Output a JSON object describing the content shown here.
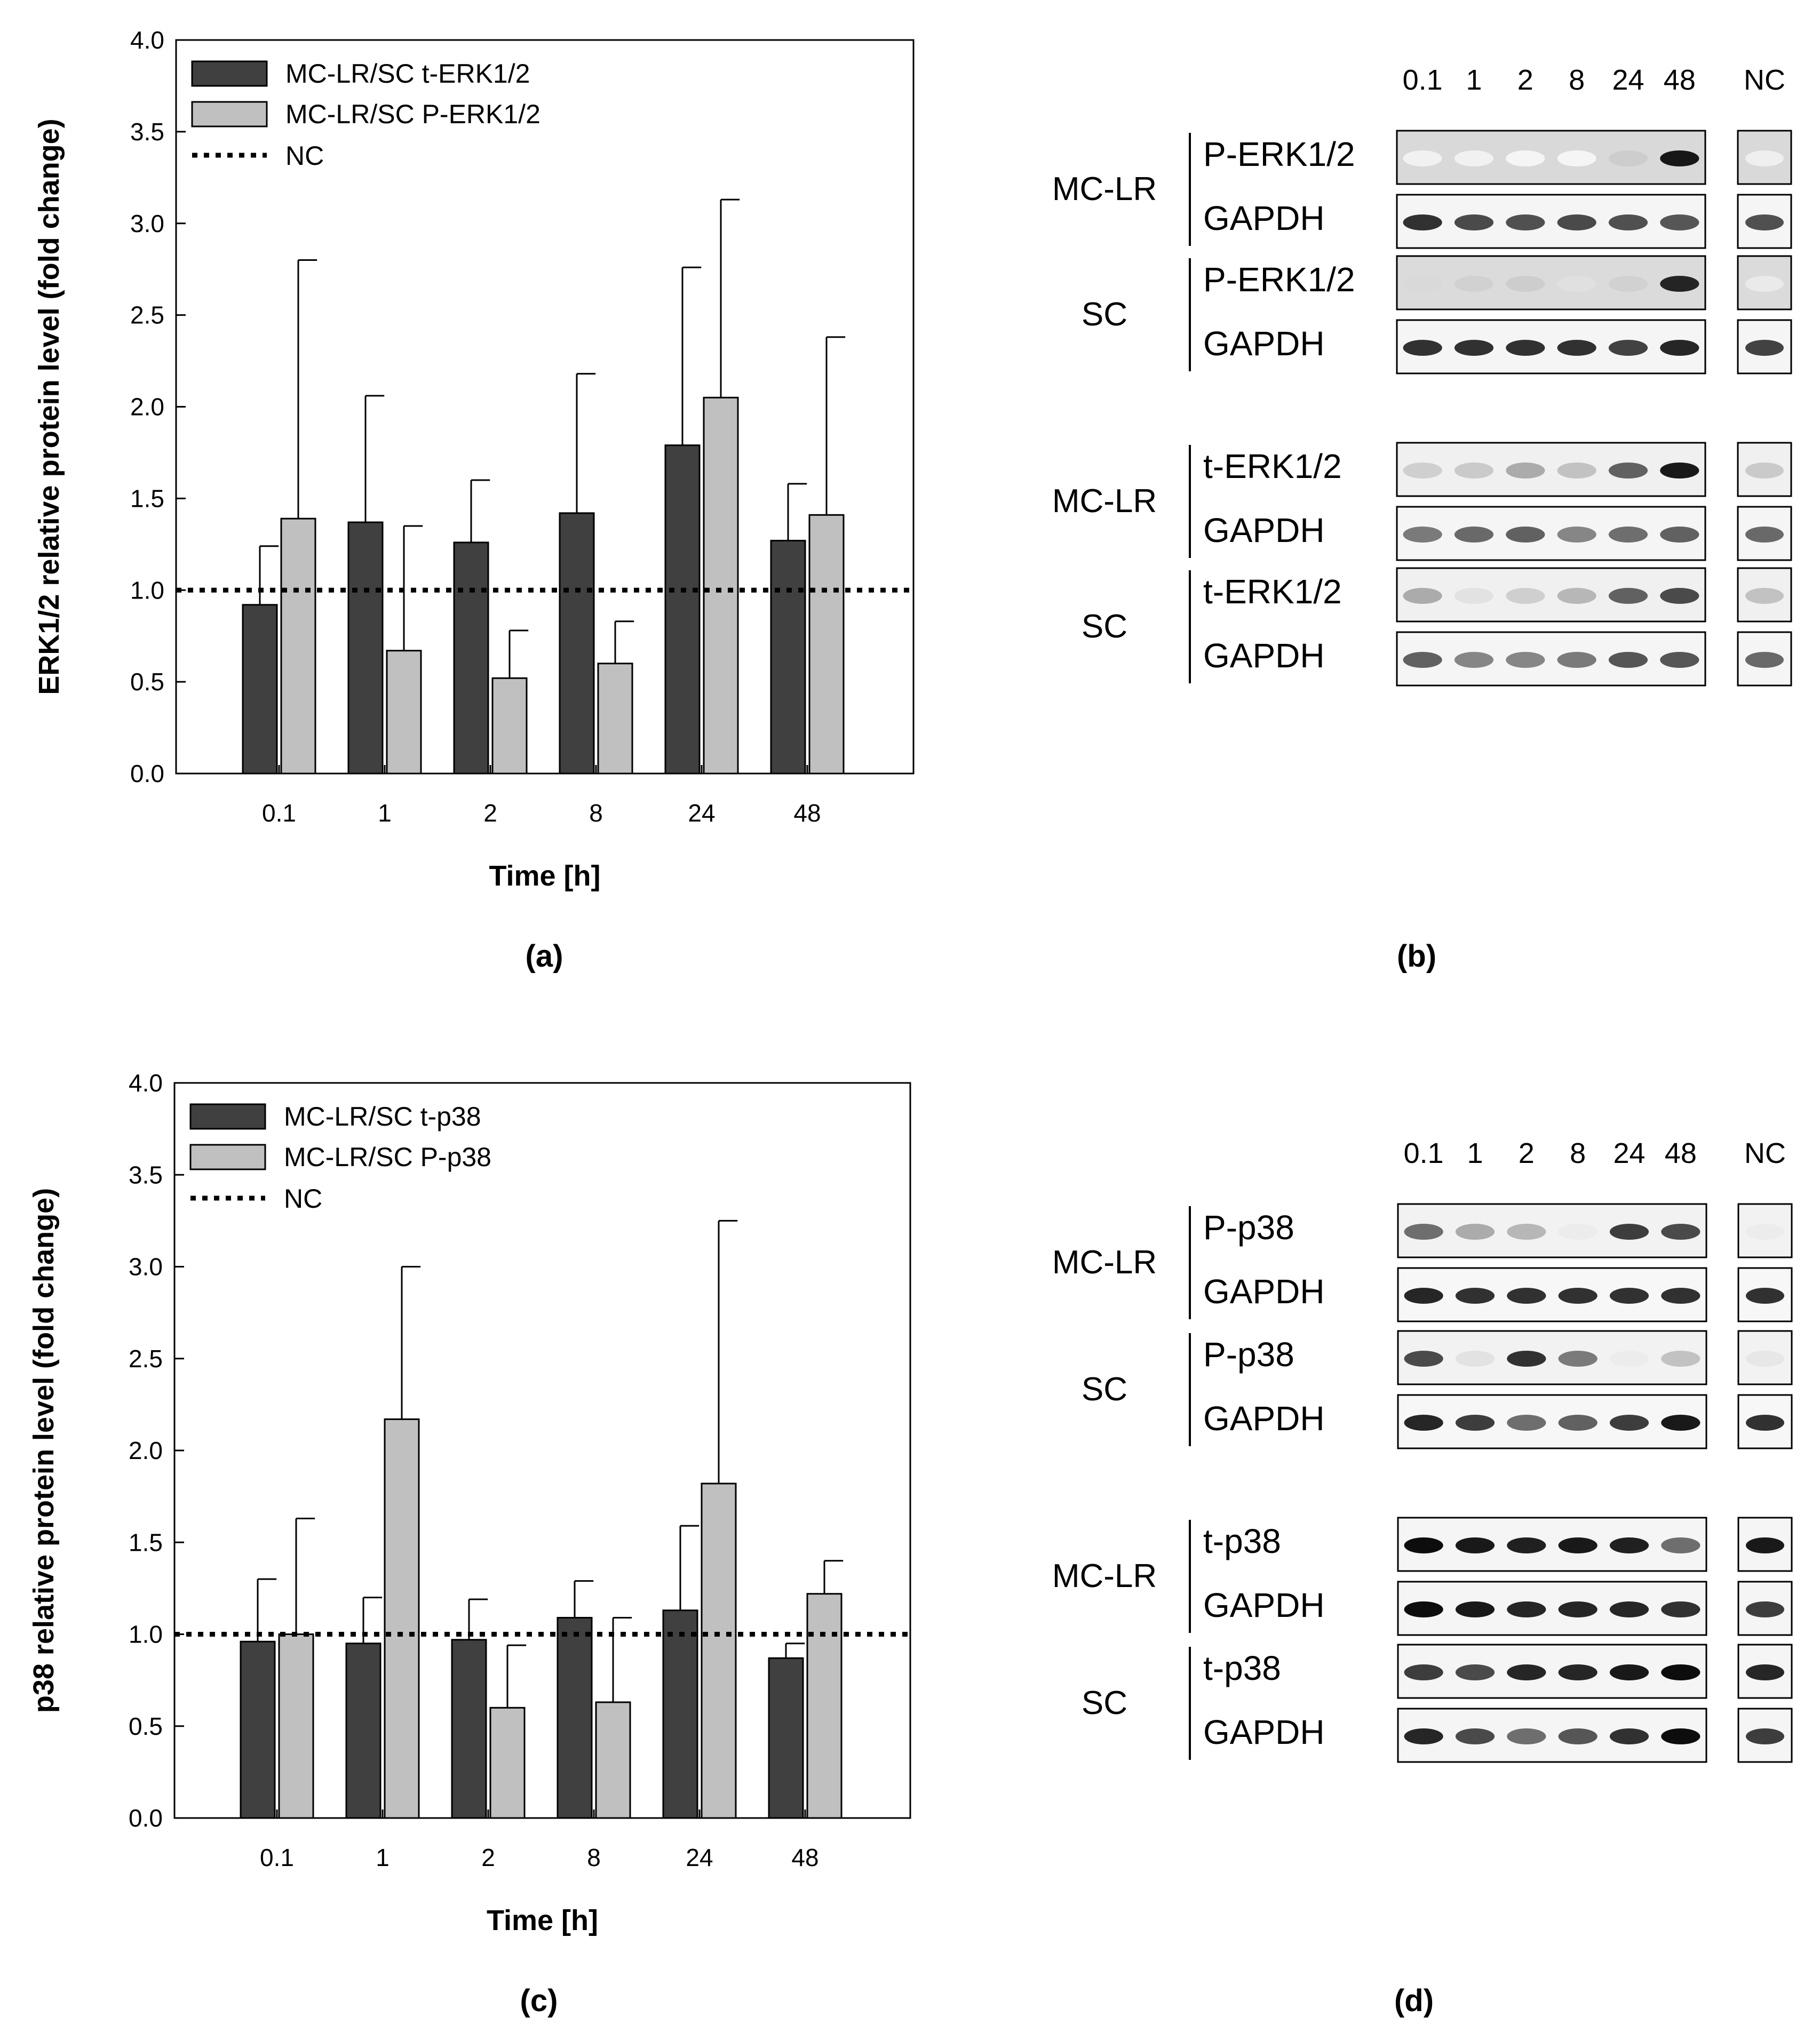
{
  "panel_labels": {
    "a": "(a)",
    "b": "(b)",
    "c": "(c)",
    "d": "(d)"
  },
  "chart_data": [
    {
      "type": "bar",
      "panel": "(a)",
      "xlabel": "Time [h]",
      "ylabel": "ERK1/2 relative protein level (fold change)",
      "ylim": [
        0,
        4.0
      ],
      "yticks": [
        "0.0",
        "0.5",
        "1.0",
        "1.5",
        "2.0",
        "2.5",
        "3.0",
        "3.5",
        "4.0"
      ],
      "categories": [
        "0.1",
        "1",
        "2",
        "8",
        "24",
        "48"
      ],
      "series": [
        {
          "name": "MC-LR/SC t-ERK1/2",
          "color": "#404040",
          "values": [
            0.92,
            1.37,
            1.26,
            1.42,
            1.79,
            1.27
          ],
          "errors": [
            0.32,
            0.69,
            0.34,
            0.76,
            0.97,
            0.31
          ]
        },
        {
          "name": "MC-LR/SC P-ERK1/2",
          "color": "#c0c0c0",
          "values": [
            1.39,
            0.67,
            0.52,
            0.6,
            2.05,
            1.41
          ],
          "errors": [
            1.41,
            0.68,
            0.26,
            0.23,
            1.08,
            0.97
          ]
        }
      ],
      "reference_line": {
        "name": "NC",
        "value": 1.0
      }
    },
    {
      "type": "bar",
      "panel": "(c)",
      "xlabel": "Time [h]",
      "ylabel": "p38 relative protein level (fold change)",
      "ylim": [
        0,
        4.0
      ],
      "yticks": [
        "0.0",
        "0.5",
        "1.0",
        "1.5",
        "2.0",
        "2.5",
        "3.0",
        "3.5",
        "4.0"
      ],
      "categories": [
        "0.1",
        "1",
        "2",
        "8",
        "24",
        "48"
      ],
      "series": [
        {
          "name": "MC-LR/SC t-p38",
          "color": "#404040",
          "values": [
            0.96,
            0.95,
            0.97,
            1.09,
            1.13,
            0.87
          ],
          "errors": [
            0.34,
            0.25,
            0.22,
            0.2,
            0.46,
            0.08
          ]
        },
        {
          "name": "MC-LR/SC P-p38",
          "color": "#c0c0c0",
          "values": [
            1.0,
            2.17,
            0.6,
            0.63,
            1.82,
            1.22
          ],
          "errors": [
            0.63,
            0.83,
            0.34,
            0.46,
            1.43,
            0.18
          ]
        }
      ],
      "reference_line": {
        "name": "NC",
        "value": 1.0
      }
    }
  ],
  "blots": [
    {
      "panel": "(b)",
      "lane_labels": [
        "0.1",
        "1",
        "2",
        "8",
        "24",
        "48"
      ],
      "nc_label": "NC",
      "groups": [
        {
          "sample": "MC-LR",
          "rows": [
            {
              "label": "P-ERK1/2",
              "intensity": [
                0.05,
                0.05,
                0.03,
                0.03,
                0.2,
                0.95
              ],
              "nc": 0.06,
              "bg": 0.15
            },
            {
              "label": "GAPDH",
              "intensity": [
                0.85,
                0.75,
                0.72,
                0.75,
                0.72,
                0.7
              ],
              "nc": 0.72,
              "bg": 0.04
            }
          ]
        },
        {
          "sample": "SC",
          "rows": [
            {
              "label": "P-ERK1/2",
              "intensity": [
                0.15,
                0.18,
                0.2,
                0.12,
                0.18,
                0.9
              ],
              "nc": 0.08,
              "bg": 0.14
            },
            {
              "label": "GAPDH",
              "intensity": [
                0.85,
                0.85,
                0.85,
                0.85,
                0.78,
                0.9
              ],
              "nc": 0.78,
              "bg": 0.04
            }
          ]
        },
        {
          "sample": "MC-LR",
          "rows": [
            {
              "label": "t-ERK1/2",
              "intensity": [
                0.2,
                0.22,
                0.35,
                0.25,
                0.65,
                0.95
              ],
              "nc": 0.22,
              "bg": 0.06
            },
            {
              "label": "GAPDH",
              "intensity": [
                0.55,
                0.62,
                0.65,
                0.5,
                0.6,
                0.65
              ],
              "nc": 0.62,
              "bg": 0.04
            }
          ]
        },
        {
          "sample": "SC",
          "rows": [
            {
              "label": "t-ERK1/2",
              "intensity": [
                0.35,
                0.12,
                0.2,
                0.3,
                0.65,
                0.75
              ],
              "nc": 0.25,
              "bg": 0.06
            },
            {
              "label": "GAPDH",
              "intensity": [
                0.65,
                0.5,
                0.5,
                0.55,
                0.7,
                0.7
              ],
              "nc": 0.62,
              "bg": 0.04
            }
          ]
        }
      ]
    },
    {
      "panel": "(d)",
      "lane_labels": [
        "0.1",
        "1",
        "2",
        "8",
        "24",
        "48"
      ],
      "nc_label": "NC",
      "groups": [
        {
          "sample": "MC-LR",
          "rows": [
            {
              "label": "P-p38",
              "intensity": [
                0.6,
                0.35,
                0.3,
                0.08,
                0.8,
                0.75
              ],
              "nc": 0.08,
              "bg": 0.05
            },
            {
              "label": "GAPDH",
              "intensity": [
                0.9,
                0.85,
                0.85,
                0.85,
                0.85,
                0.85
              ],
              "nc": 0.85,
              "bg": 0.03
            }
          ]
        },
        {
          "sample": "SC",
          "rows": [
            {
              "label": "P-p38",
              "intensity": [
                0.75,
                0.12,
                0.85,
                0.55,
                0.08,
                0.25
              ],
              "nc": 0.1,
              "bg": 0.05
            },
            {
              "label": "GAPDH",
              "intensity": [
                0.9,
                0.8,
                0.6,
                0.65,
                0.8,
                0.95
              ],
              "nc": 0.85,
              "bg": 0.03
            }
          ]
        },
        {
          "sample": "MC-LR",
          "rows": [
            {
              "label": "t-p38",
              "intensity": [
                1.0,
                0.95,
                0.92,
                0.95,
                0.92,
                0.6
              ],
              "nc": 0.95,
              "bg": 0.04
            },
            {
              "label": "GAPDH",
              "intensity": [
                1.0,
                0.95,
                0.9,
                0.9,
                0.9,
                0.85
              ],
              "nc": 0.8,
              "bg": 0.04
            }
          ]
        },
        {
          "sample": "SC",
          "rows": [
            {
              "label": "t-p38",
              "intensity": [
                0.8,
                0.75,
                0.9,
                0.9,
                0.95,
                1.0
              ],
              "nc": 0.9,
              "bg": 0.04
            },
            {
              "label": "GAPDH",
              "intensity": [
                0.9,
                0.75,
                0.6,
                0.7,
                0.85,
                1.0
              ],
              "nc": 0.8,
              "bg": 0.04
            }
          ]
        }
      ]
    }
  ]
}
